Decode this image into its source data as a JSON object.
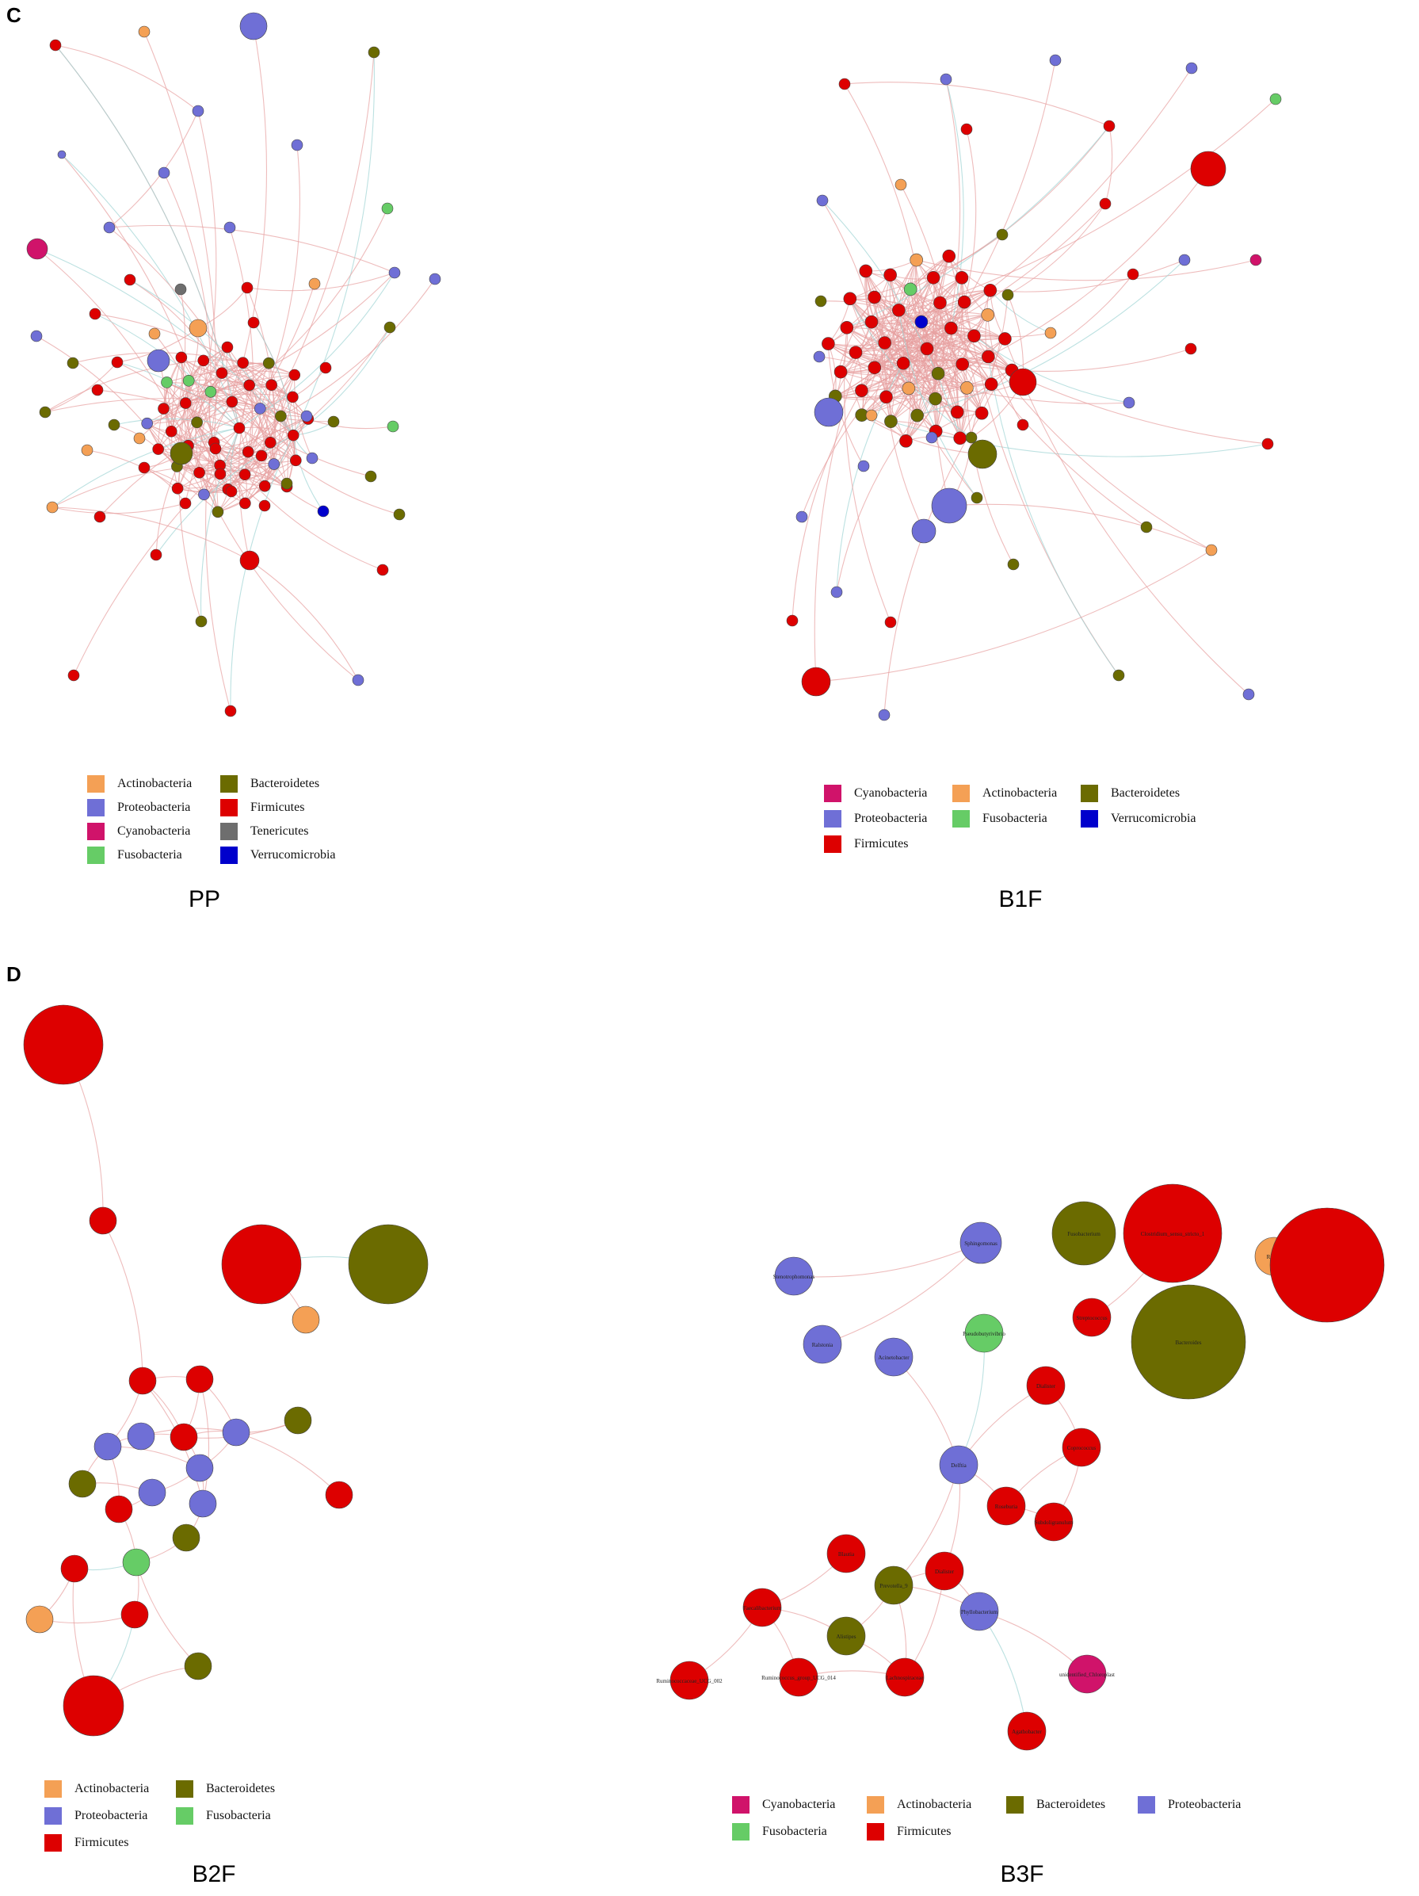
{
  "colors": {
    "Actinobacteria": "#F4A055",
    "Proteobacteria": "#6F6FD6",
    "Cyanobacteria": "#D0136A",
    "Fusobacteria": "#66CC66",
    "Bacteroidetes": "#6B6B00",
    "Firmicutes": "#DD0000",
    "Tenericutes": "#6E6E6E",
    "Verrucomicrobia": "#0000CC"
  },
  "panels": {
    "C": {
      "letter": "C"
    },
    "D": {
      "letter": "D"
    }
  },
  "networks": {
    "PP": {
      "title": "PP",
      "legend": [
        "Actinobacteria",
        "Bacteroidetes",
        "Proteobacteria",
        "Firmicutes",
        "Cyanobacteria",
        "Tenericutes",
        "Fusobacteria",
        "Verrucomicrobia"
      ]
    },
    "B1F": {
      "title": "B1F",
      "legend": [
        "Cyanobacteria",
        "Actinobacteria",
        "Bacteroidetes",
        "Proteobacteria",
        "Fusobacteria",
        "Verrucomicrobia",
        "Firmicutes"
      ]
    },
    "B2F": {
      "title": "B2F",
      "legend": [
        "Actinobacteria",
        "Bacteroidetes",
        "Proteobacteria",
        "Fusobacteria",
        "Firmicutes"
      ]
    },
    "B3F": {
      "title": "B3F",
      "legend": [
        "Cyanobacteria",
        "Actinobacteria",
        "Bacteroidetes",
        "Proteobacteria",
        "Fusobacteria",
        "Firmicutes"
      ],
      "node_labels": {
        "Streptophonicum": "Stenotrophomonas",
        "Sphingomonas": "Sphingomonas",
        "Fusobacterium": "Fusobacterium",
        "Clostridium": "Clostridium_sensu_stricto_1",
        "Rothia": "Rothia",
        "Streptococcus": "Streptococcus",
        "Ralstonia": "Ralstonia",
        "Acinetobacter": "Acinetobacter",
        "Pseudobutyrivibrio": "Pseudobutyrivibrio",
        "Bacteroides": "Bacteroides",
        "Delftia": "Delftia",
        "Blautia": "Blautia",
        "Subdoligranulum": "Subdoligranulum",
        "Prevotella9": "Prevotella_9",
        "Dialister": "Dialister",
        "Faecalibacterium": "Faecalibacterium",
        "Phyllobacterium": "Phyllobacterium",
        "Alistipes": "Alistipes",
        "Ruminococcaceae_UCG002": "Ruminococcaceae_UCG_002",
        "Ruminococcus_UCG014": "Ruminococcus_group_UCG_014",
        "Lachnospiraceae": "Lachnospiraceae",
        "Chloroplast": "unidentified_Chloroplast",
        "Agathobacter": "Agathobacter",
        "Coprococcus": "Coprococcus",
        "Roseburia": "Roseburia"
      }
    }
  }
}
